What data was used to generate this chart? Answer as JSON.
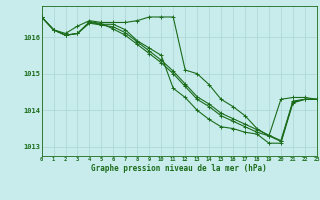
{
  "title": "Graphe pression niveau de la mer (hPa)",
  "background_color": "#c8ecec",
  "grid_color": "#b0d8d8",
  "line_color": "#1a6b1a",
  "xlim": [
    0,
    23
  ],
  "ylim": [
    1012.75,
    1016.85
  ],
  "yticks": [
    1013,
    1014,
    1015,
    1016
  ],
  "xticks": [
    0,
    1,
    2,
    3,
    4,
    5,
    6,
    7,
    8,
    9,
    10,
    11,
    12,
    13,
    14,
    15,
    16,
    17,
    18,
    19,
    20,
    21,
    22,
    23
  ],
  "series": [
    [
      1016.55,
      1016.2,
      1016.1,
      1016.3,
      1016.45,
      1016.4,
      1016.4,
      1016.4,
      1016.45,
      1016.55,
      1016.55,
      1016.55,
      1015.1,
      1015.0,
      1014.7,
      1014.3,
      1014.1,
      1013.85,
      1013.5,
      1013.3,
      1014.3,
      1014.35,
      1014.35,
      1014.3
    ],
    [
      1016.55,
      1016.2,
      1016.05,
      1016.1,
      1016.4,
      1016.35,
      1016.35,
      1016.2,
      1015.9,
      1015.7,
      1015.5,
      1014.6,
      1014.35,
      1014.0,
      1013.75,
      1013.55,
      1013.5,
      1013.4,
      1013.35,
      1013.1,
      1013.1,
      1014.2,
      1014.3,
      1014.3
    ],
    [
      1016.55,
      1016.2,
      1016.05,
      1016.1,
      1016.42,
      1016.37,
      1016.22,
      1016.05,
      1015.8,
      1015.55,
      1015.3,
      1015.0,
      1014.65,
      1014.3,
      1014.1,
      1013.85,
      1013.7,
      1013.55,
      1013.4,
      1013.3,
      1013.15,
      1014.25,
      1014.3,
      1014.3
    ],
    [
      1016.55,
      1016.2,
      1016.05,
      1016.1,
      1016.38,
      1016.33,
      1016.28,
      1016.12,
      1015.87,
      1015.62,
      1015.37,
      1015.07,
      1014.72,
      1014.37,
      1014.17,
      1013.92,
      1013.77,
      1013.62,
      1013.47,
      1013.32,
      1013.17,
      1014.22,
      1014.3,
      1014.3
    ]
  ]
}
